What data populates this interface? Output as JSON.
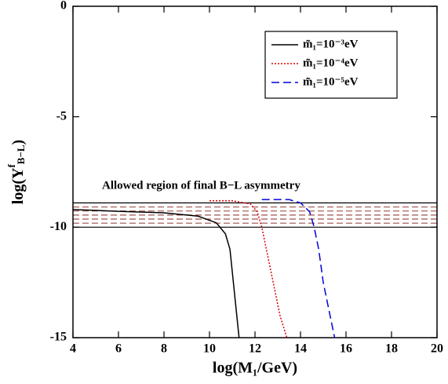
{
  "chart_data": {
    "type": "line",
    "xlabel": "log(M₁/GeV)",
    "ylabel": {
      "base": "log(Y",
      "sup": "f",
      "sub": "B−L",
      "end": ")"
    },
    "annotation": "Allowed region of final B−L asymmetry",
    "xlim": [
      4,
      20
    ],
    "xticks": [
      4,
      6,
      8,
      10,
      12,
      14,
      16,
      18,
      20
    ],
    "ylim": [
      -15,
      0
    ],
    "yticks": [
      0,
      -5,
      -10,
      -15
    ],
    "band": {
      "ylim": [
        -10,
        -8.9
      ],
      "color": "#a0524d"
    },
    "legend": "upper right",
    "series": [
      {
        "name": "m̃₁=10⁻³eV",
        "color": "#000000",
        "style": "solid",
        "x": [
          4,
          6,
          8,
          9.5,
          10.3,
          10.7,
          10.9,
          11.0,
          11.1,
          11.2,
          11.3
        ],
        "values": [
          -9.2,
          -9.28,
          -9.35,
          -9.5,
          -9.8,
          -10.3,
          -11,
          -12,
          -13,
          -14,
          -15
        ]
      },
      {
        "name": "m̃₁=10⁻⁴eV",
        "color": "#dd0000",
        "style": "dotted",
        "x": [
          10,
          11,
          11.8,
          12.1,
          12.3,
          12.5,
          12.8,
          13.1,
          13.4
        ],
        "values": [
          -8.8,
          -8.8,
          -8.95,
          -9.3,
          -10,
          -11,
          -12.5,
          -14,
          -15
        ]
      },
      {
        "name": "m̃₁=10⁻⁵eV",
        "color": "#0000dd",
        "style": "dashed",
        "x": [
          12.3,
          13.5,
          14.0,
          14.4,
          14.6,
          14.8,
          15.0,
          15.3,
          15.5
        ],
        "values": [
          -8.75,
          -8.75,
          -8.9,
          -9.3,
          -10,
          -11,
          -12.5,
          -14,
          -15
        ]
      }
    ]
  }
}
